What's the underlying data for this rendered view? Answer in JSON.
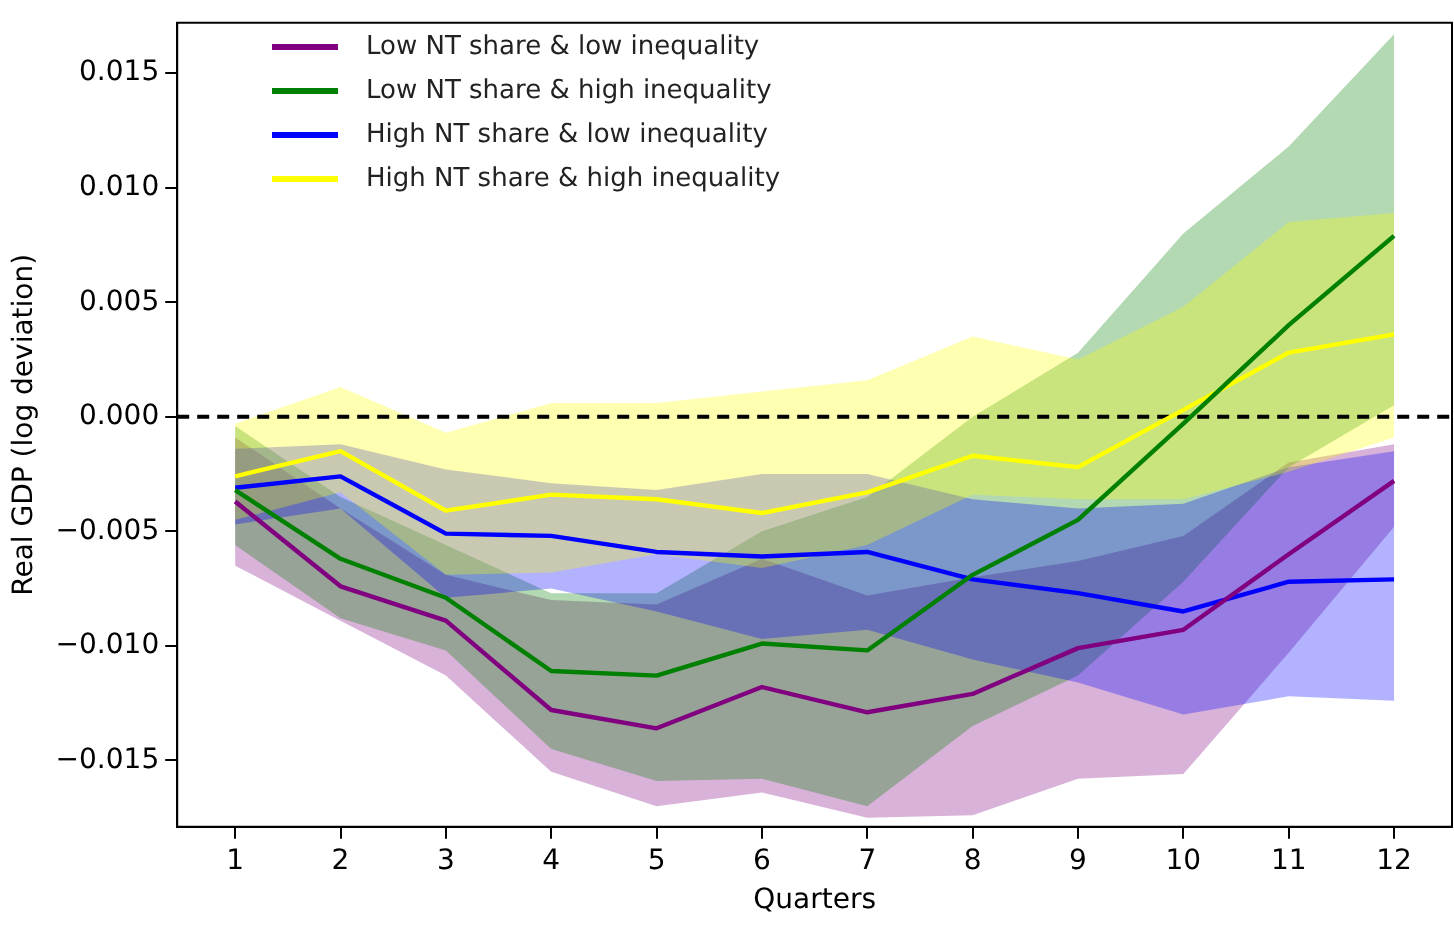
{
  "chart_data": {
    "type": "line",
    "xlabel": "Quarters",
    "ylabel": "Real GDP (log deviation)",
    "x": [
      1,
      2,
      3,
      4,
      5,
      6,
      7,
      8,
      9,
      10,
      11,
      12
    ],
    "xlim": [
      0.45,
      12.55
    ],
    "xticks": [
      1,
      2,
      3,
      4,
      5,
      6,
      7,
      8,
      9,
      10,
      11,
      12
    ],
    "ylim": [
      -0.0179,
      0.0172
    ],
    "yticks": [
      {
        "value": -0.015,
        "label": "−0.015"
      },
      {
        "value": -0.01,
        "label": "−0.010"
      },
      {
        "value": -0.005,
        "label": "−0.005"
      },
      {
        "value": 0,
        "label": "0.000"
      },
      {
        "value": 0.005,
        "label": "0.005"
      },
      {
        "value": 0.01,
        "label": "0.010"
      },
      {
        "value": 0.015,
        "label": "0.015"
      }
    ],
    "grid": false,
    "legend": "top left",
    "marker": "none",
    "line_style": "solid",
    "ref_lines": [
      {
        "axis": "y",
        "value": 0,
        "label": null,
        "color": "#000000",
        "line_style": "dashed"
      }
    ],
    "series": [
      {
        "name": "Low NT share & low inequality",
        "color": "#800080",
        "values": [
          -0.0037,
          -0.0074,
          -0.0089,
          -0.0128,
          -0.0136,
          -0.0118,
          -0.0129,
          -0.0121,
          -0.0101,
          -0.0093,
          -0.006,
          -0.0028
        ],
        "lower": [
          -0.0065,
          -0.0089,
          -0.0113,
          -0.0155,
          -0.017,
          -0.0164,
          -0.0175,
          -0.0174,
          -0.0158,
          -0.0156,
          -0.0103,
          -0.0048
        ],
        "upper": [
          -0.0009,
          -0.004,
          -0.0069,
          -0.008,
          -0.0082,
          -0.0062,
          -0.0078,
          -0.007,
          -0.0063,
          -0.0052,
          -0.002,
          -0.0012
        ]
      },
      {
        "name": "Low NT share & high inequality",
        "color": "#008000",
        "values": [
          -0.0032,
          -0.0062,
          -0.0079,
          -0.0111,
          -0.0113,
          -0.0099,
          -0.0102,
          -0.0069,
          -0.0045,
          -0.0003,
          0.004,
          0.0079
        ],
        "lower": [
          -0.0056,
          -0.0088,
          -0.0102,
          -0.0145,
          -0.0159,
          -0.0158,
          -0.017,
          -0.0135,
          -0.0113,
          -0.0072,
          -0.0022,
          0.0005
        ],
        "upper": [
          -0.0004,
          -0.0035,
          -0.0056,
          -0.0077,
          -0.0077,
          -0.005,
          -0.0035,
          0.0,
          0.0028,
          0.008,
          0.0118,
          0.0167
        ]
      },
      {
        "name": "High NT share & low inequality",
        "color": "#0000ff",
        "values": [
          -0.0031,
          -0.0026,
          -0.0051,
          -0.0052,
          -0.0059,
          -0.0061,
          -0.0059,
          -0.0071,
          -0.0077,
          -0.0085,
          -0.0072,
          -0.0071
        ],
        "lower": [
          -0.0047,
          -0.004,
          -0.0079,
          -0.0075,
          -0.0085,
          -0.0097,
          -0.0093,
          -0.0106,
          -0.0116,
          -0.013,
          -0.0122,
          -0.0124
        ],
        "upper": [
          -0.0014,
          -0.0012,
          -0.0023,
          -0.0029,
          -0.0032,
          -0.0025,
          -0.0025,
          -0.0036,
          -0.004,
          -0.0038,
          -0.0022,
          -0.0015
        ]
      },
      {
        "name": "High NT share & high inequality",
        "color": "#ffff00",
        "values": [
          -0.0026,
          -0.0015,
          -0.0041,
          -0.0034,
          -0.0036,
          -0.0042,
          -0.0033,
          -0.0017,
          -0.0022,
          0.0003,
          0.0028,
          0.0036
        ],
        "lower": [
          -0.0045,
          -0.0033,
          -0.0069,
          -0.0068,
          -0.006,
          -0.0066,
          -0.0056,
          -0.0034,
          -0.0036,
          -0.0036,
          -0.0024,
          -0.0009
        ],
        "upper": [
          -0.0003,
          0.0013,
          -0.0007,
          0.0006,
          0.0006,
          0.0011,
          0.0016,
          0.0035,
          0.0025,
          0.0048,
          0.0085,
          0.0089
        ]
      }
    ]
  }
}
